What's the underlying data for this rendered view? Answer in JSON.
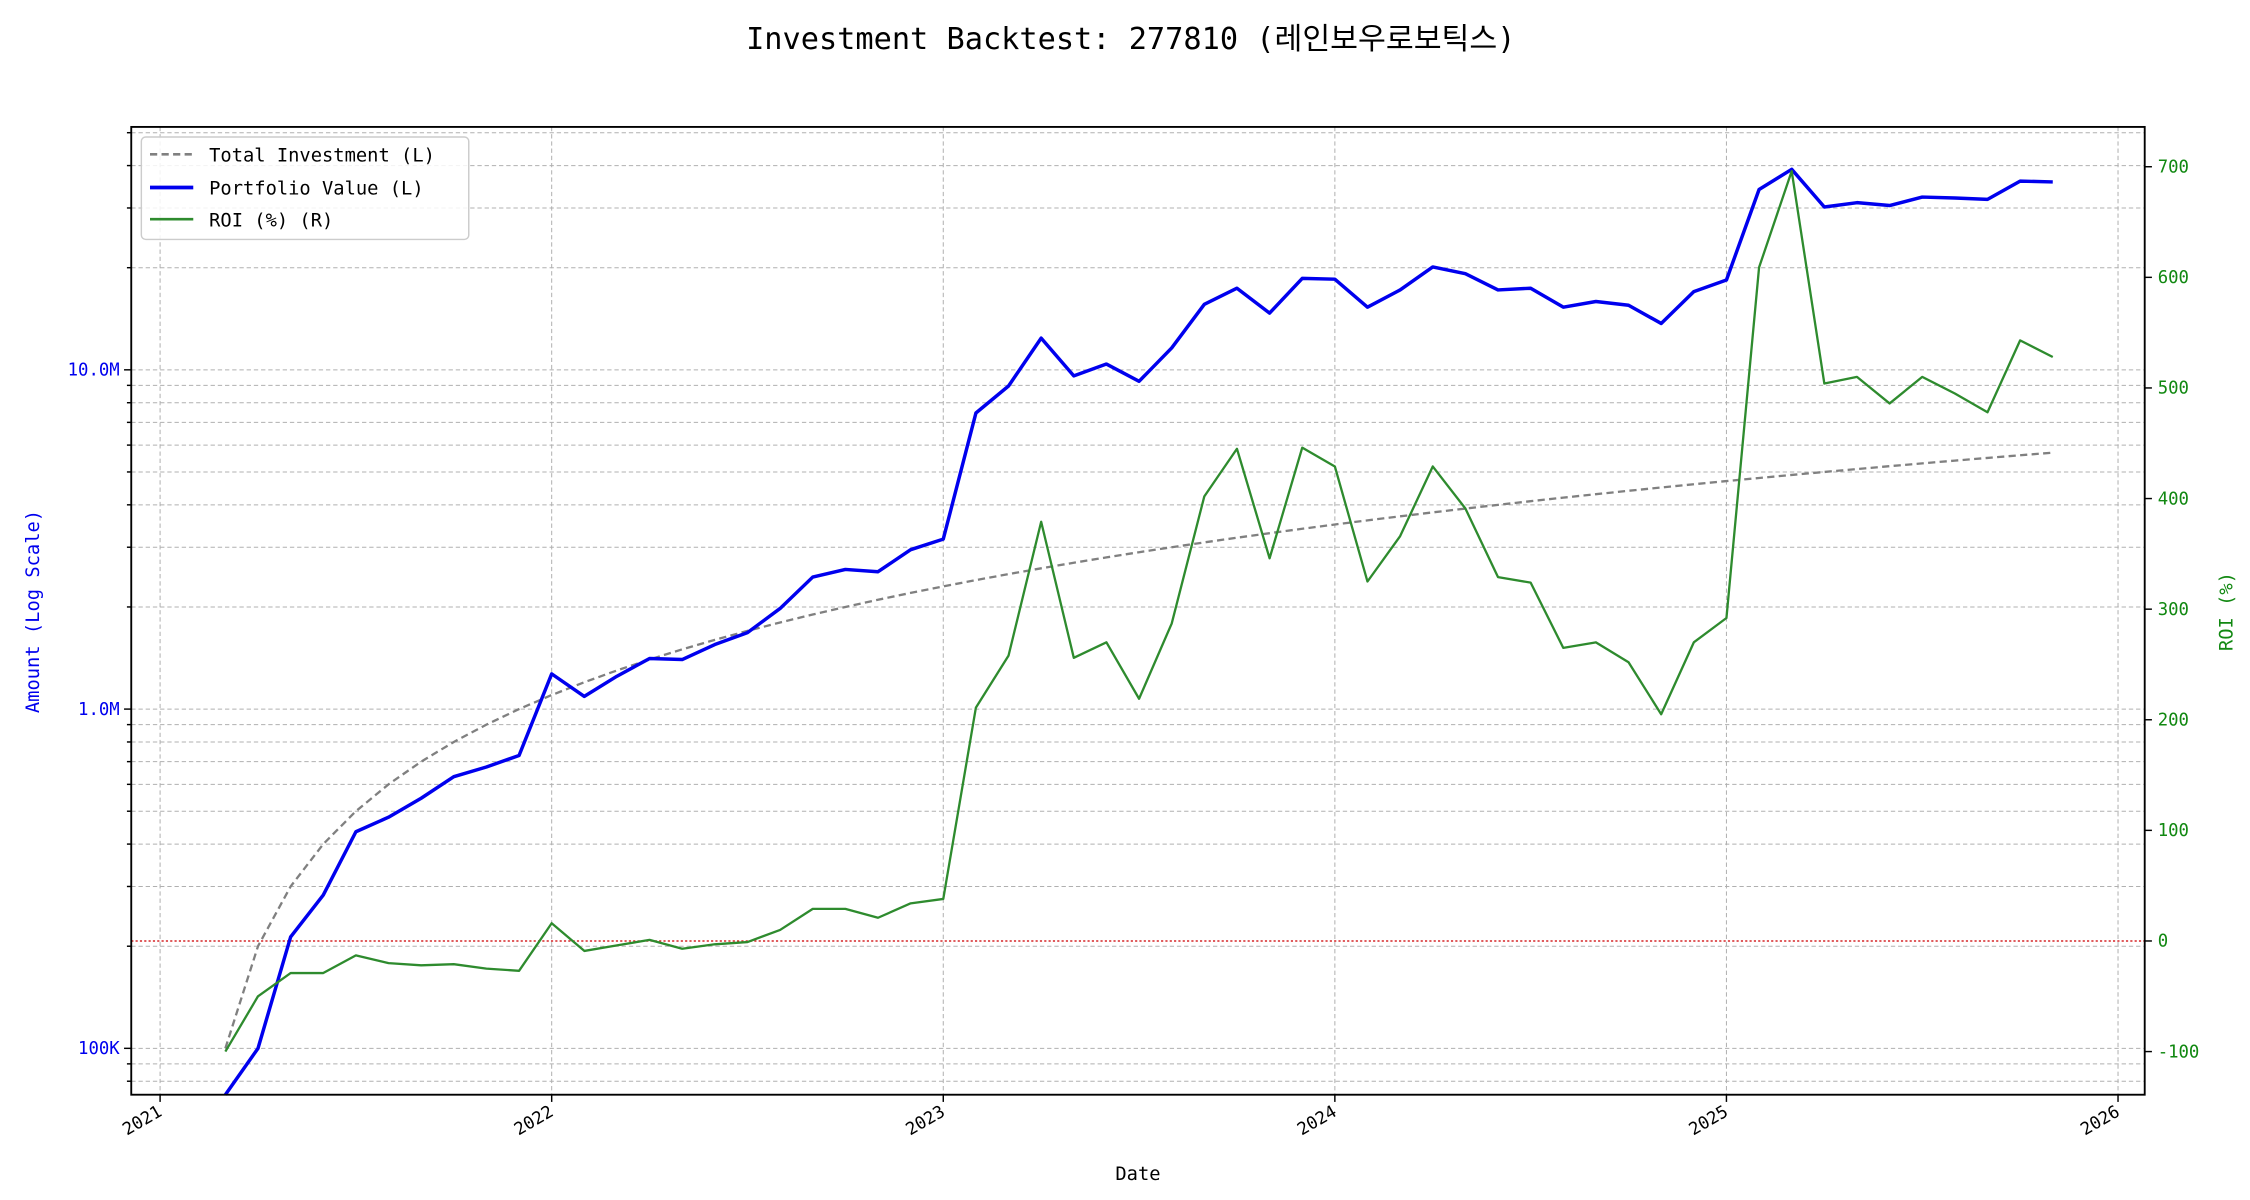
{
  "chart_data": {
    "type": "line",
    "title": "Investment Backtest: 277810 (레인보우로보틱스)",
    "xlabel": "Date",
    "ylabel_left": "Amount (Log Scale)",
    "ylabel_right": "ROI (%)",
    "x_ticks": [
      "2021",
      "2022",
      "2023",
      "2024",
      "2025",
      "2026"
    ],
    "left_scale": "log",
    "left_ticks": [
      {
        "value": 100000,
        "label": "100K"
      },
      {
        "value": 1000000,
        "label": "1.0M"
      },
      {
        "value": 10000000,
        "label": "10.0M"
      }
    ],
    "left_ylim": [
      73000,
      52000000
    ],
    "right_ticks": [
      -100,
      0,
      100,
      200,
      300,
      400,
      500,
      600,
      700
    ],
    "right_ylim": [
      -139,
      736
    ],
    "grid": true,
    "legend_position": "top-left",
    "reference_line": {
      "axis": "right",
      "value": 0,
      "color": "#d62728",
      "style": "dotted"
    },
    "colors": {
      "total": "#808080",
      "portfolio": "#0000ee",
      "roi": "#2e8b2e",
      "left_axis": "#0000ee",
      "right_axis": "#118811"
    },
    "x": [
      "2021-03",
      "2021-04",
      "2021-05",
      "2021-06",
      "2021-07",
      "2021-08",
      "2021-09",
      "2021-10",
      "2021-11",
      "2021-12",
      "2022-01",
      "2022-02",
      "2022-03",
      "2022-04",
      "2022-05",
      "2022-06",
      "2022-07",
      "2022-08",
      "2022-09",
      "2022-10",
      "2022-11",
      "2022-12",
      "2023-01",
      "2023-02",
      "2023-03",
      "2023-04",
      "2023-05",
      "2023-06",
      "2023-07",
      "2023-08",
      "2023-09",
      "2023-10",
      "2023-11",
      "2023-12",
      "2024-01",
      "2024-02",
      "2024-03",
      "2024-04",
      "2024-05",
      "2024-06",
      "2024-07",
      "2024-08",
      "2024-09",
      "2024-10",
      "2024-11",
      "2024-12",
      "2025-01",
      "2025-02",
      "2025-03",
      "2025-04",
      "2025-05",
      "2025-06",
      "2025-07",
      "2025-08",
      "2025-09",
      "2025-10",
      "2025-11"
    ],
    "series": [
      {
        "name": "Total Investment (L)",
        "axis": "left",
        "style": "dashed",
        "values": [
          100000,
          200000,
          300000,
          400000,
          500000,
          600000,
          700000,
          800000,
          900000,
          1000000,
          1100000,
          1200000,
          1300000,
          1400000,
          1500000,
          1600000,
          1700000,
          1800000,
          1900000,
          2000000,
          2100000,
          2200000,
          2300000,
          2400000,
          2500000,
          2600000,
          2700000,
          2800000,
          2900000,
          3000000,
          3100000,
          3200000,
          3300000,
          3400000,
          3500000,
          3600000,
          3700000,
          3800000,
          3900000,
          4000000,
          4100000,
          4200000,
          4300000,
          4400000,
          4500000,
          4600000,
          4700000,
          4800000,
          4900000,
          5000000,
          5100000,
          5200000,
          5300000,
          5400000,
          5500000,
          5600000,
          5700000
        ]
      },
      {
        "name": "Portfolio Value (L)",
        "axis": "left",
        "style": "solid",
        "values": [
          0,
          100000,
          213000,
          283000,
          435000,
          480000,
          546000,
          632000,
          675000,
          730000,
          1270000,
          1090000,
          1250000,
          1410000,
          1400000,
          1550000,
          1680000,
          1980000,
          2450000,
          2580000,
          2540000,
          2950000,
          3170000,
          7460000,
          8960000,
          12400000,
          9600000,
          10400000,
          9250000,
          11600000,
          15600000,
          17400000,
          14700000,
          18600000,
          18500000,
          15300000,
          17200000,
          20100000,
          19200000,
          17200000,
          17400000,
          15300000,
          15900000,
          15500000,
          13700000,
          17000000,
          18400000,
          34000000,
          39000000,
          30200000,
          31100000,
          30500000,
          32300000,
          32100000,
          31800000,
          36000000,
          35800000
        ]
      },
      {
        "name": "ROI (%) (R)",
        "axis": "right",
        "style": "solid",
        "values": [
          -100,
          -50,
          -29,
          -29,
          -13,
          -20,
          -22,
          -21,
          -25,
          -27,
          16,
          -9,
          -4,
          1,
          -7,
          -3,
          -1,
          10,
          29,
          29,
          21,
          34,
          38,
          211,
          258,
          379,
          256,
          270,
          219,
          287,
          402,
          445,
          346,
          446,
          429,
          325,
          366,
          429,
          391,
          329,
          324,
          265,
          270,
          252,
          205,
          270,
          292,
          609,
          696,
          504,
          510,
          486,
          510,
          495,
          478,
          543,
          528
        ]
      }
    ]
  }
}
